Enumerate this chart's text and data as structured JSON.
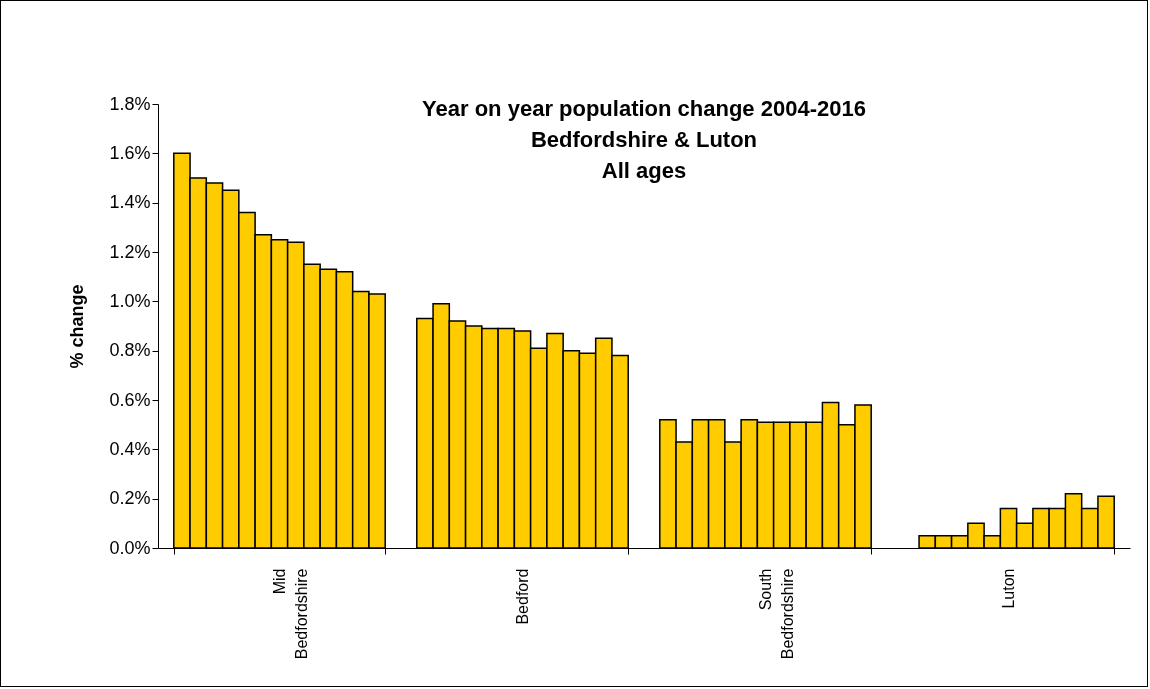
{
  "chart_data": {
    "type": "bar",
    "title": "Year on year population change 2004-2016\nBedfordshire &  Luton\nAll ages",
    "ylabel": "% change",
    "categories": [
      "Mid Bedfordshire",
      "Bedford",
      "South Bedfordshire",
      "Luton"
    ],
    "series": [
      {
        "color": "#ffcc00",
        "values": [
          1.6,
          0.93,
          0.52,
          null
        ]
      },
      {
        "color": "#ffcc00",
        "values": [
          1.5,
          0.99,
          0.43,
          0.05
        ]
      },
      {
        "color": "#ffcc00",
        "values": [
          1.48,
          0.92,
          0.52,
          0.05
        ]
      },
      {
        "color": "#ffcc00",
        "values": [
          1.45,
          0.9,
          0.52,
          0.05
        ]
      },
      {
        "color": "#ffcc00",
        "values": [
          1.36,
          0.89,
          0.43,
          0.1
        ]
      },
      {
        "color": "#ffcc00",
        "values": [
          1.27,
          0.89,
          0.52,
          0.05
        ]
      },
      {
        "color": "#ffcc00",
        "values": [
          1.25,
          0.88,
          0.51,
          0.16
        ]
      },
      {
        "color": "#ffcc00",
        "values": [
          1.24,
          0.81,
          0.51,
          0.1
        ]
      },
      {
        "color": "#ffcc00",
        "values": [
          1.15,
          0.87,
          0.51,
          0.16
        ]
      },
      {
        "color": "#ffcc00",
        "values": [
          1.13,
          0.8,
          0.51,
          0.16
        ]
      },
      {
        "color": "#ffcc00",
        "values": [
          1.12,
          0.79,
          0.59,
          0.22
        ]
      },
      {
        "color": "#ffcc00",
        "values": [
          1.04,
          0.85,
          0.5,
          0.16
        ]
      },
      {
        "color": "#ffcc00",
        "values": [
          1.03,
          0.78,
          0.58,
          0.21
        ]
      }
    ],
    "ylim": [
      0,
      1.8
    ],
    "yticks": [
      {
        "value": 0,
        "label": "0.0%"
      },
      {
        "value": 0.2,
        "label": "0.2%"
      },
      {
        "value": 0.4,
        "label": "0.4%"
      },
      {
        "value": 0.6,
        "label": "0.6%"
      },
      {
        "value": 0.8,
        "label": "0.8%"
      },
      {
        "value": 1.0,
        "label": "1.0%"
      },
      {
        "value": 1.2,
        "label": "1.2%"
      },
      {
        "value": 1.4,
        "label": "1.4%"
      },
      {
        "value": 1.6,
        "label": "1.6%"
      },
      {
        "value": 1.8,
        "label": "1.8%"
      }
    ],
    "grid": false,
    "legend": false
  }
}
